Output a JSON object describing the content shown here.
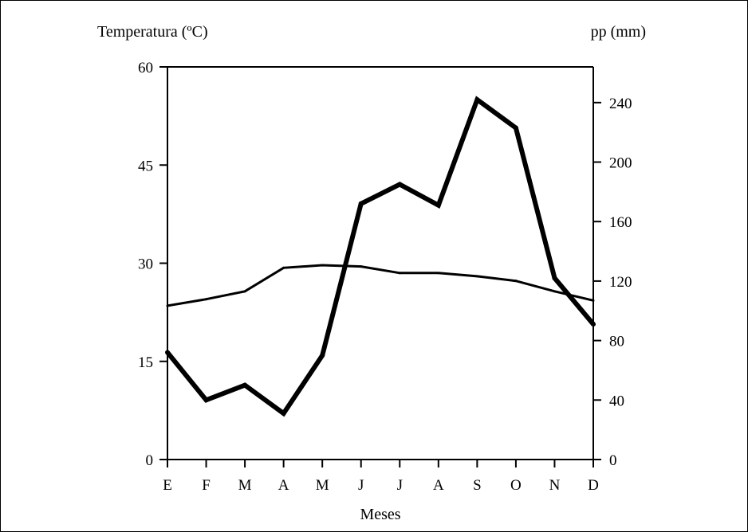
{
  "chart_data": {
    "type": "line",
    "title": "",
    "xlabel": "Meses",
    "ylabel_left": "Temperatura (ºC)",
    "ylabel_right": "pp (mm)",
    "categories": [
      "E",
      "F",
      "M",
      "A",
      "M",
      "J",
      "J",
      "A",
      "S",
      "O",
      "N",
      "D"
    ],
    "left_axis": {
      "ylim": [
        0,
        60
      ],
      "ticks": [
        0,
        15,
        30,
        45,
        60
      ]
    },
    "right_axis": {
      "ylim": [
        0,
        264
      ],
      "ticks": [
        0,
        40,
        80,
        120,
        160,
        200,
        240
      ]
    },
    "grid": false,
    "legend": "none",
    "series": [
      {
        "axis": "left",
        "values": [
          23.5,
          24.5,
          25.7,
          29.3,
          29.7,
          29.5,
          28.5,
          28.5,
          28.0,
          27.3,
          25.7,
          24.3
        ],
        "color": "#000000",
        "weight": "thin"
      },
      {
        "axis": "right",
        "values": [
          72,
          40,
          50,
          31,
          70,
          172,
          185,
          171,
          242,
          223,
          122,
          91
        ],
        "color": "#000000",
        "weight": "thick"
      }
    ]
  }
}
